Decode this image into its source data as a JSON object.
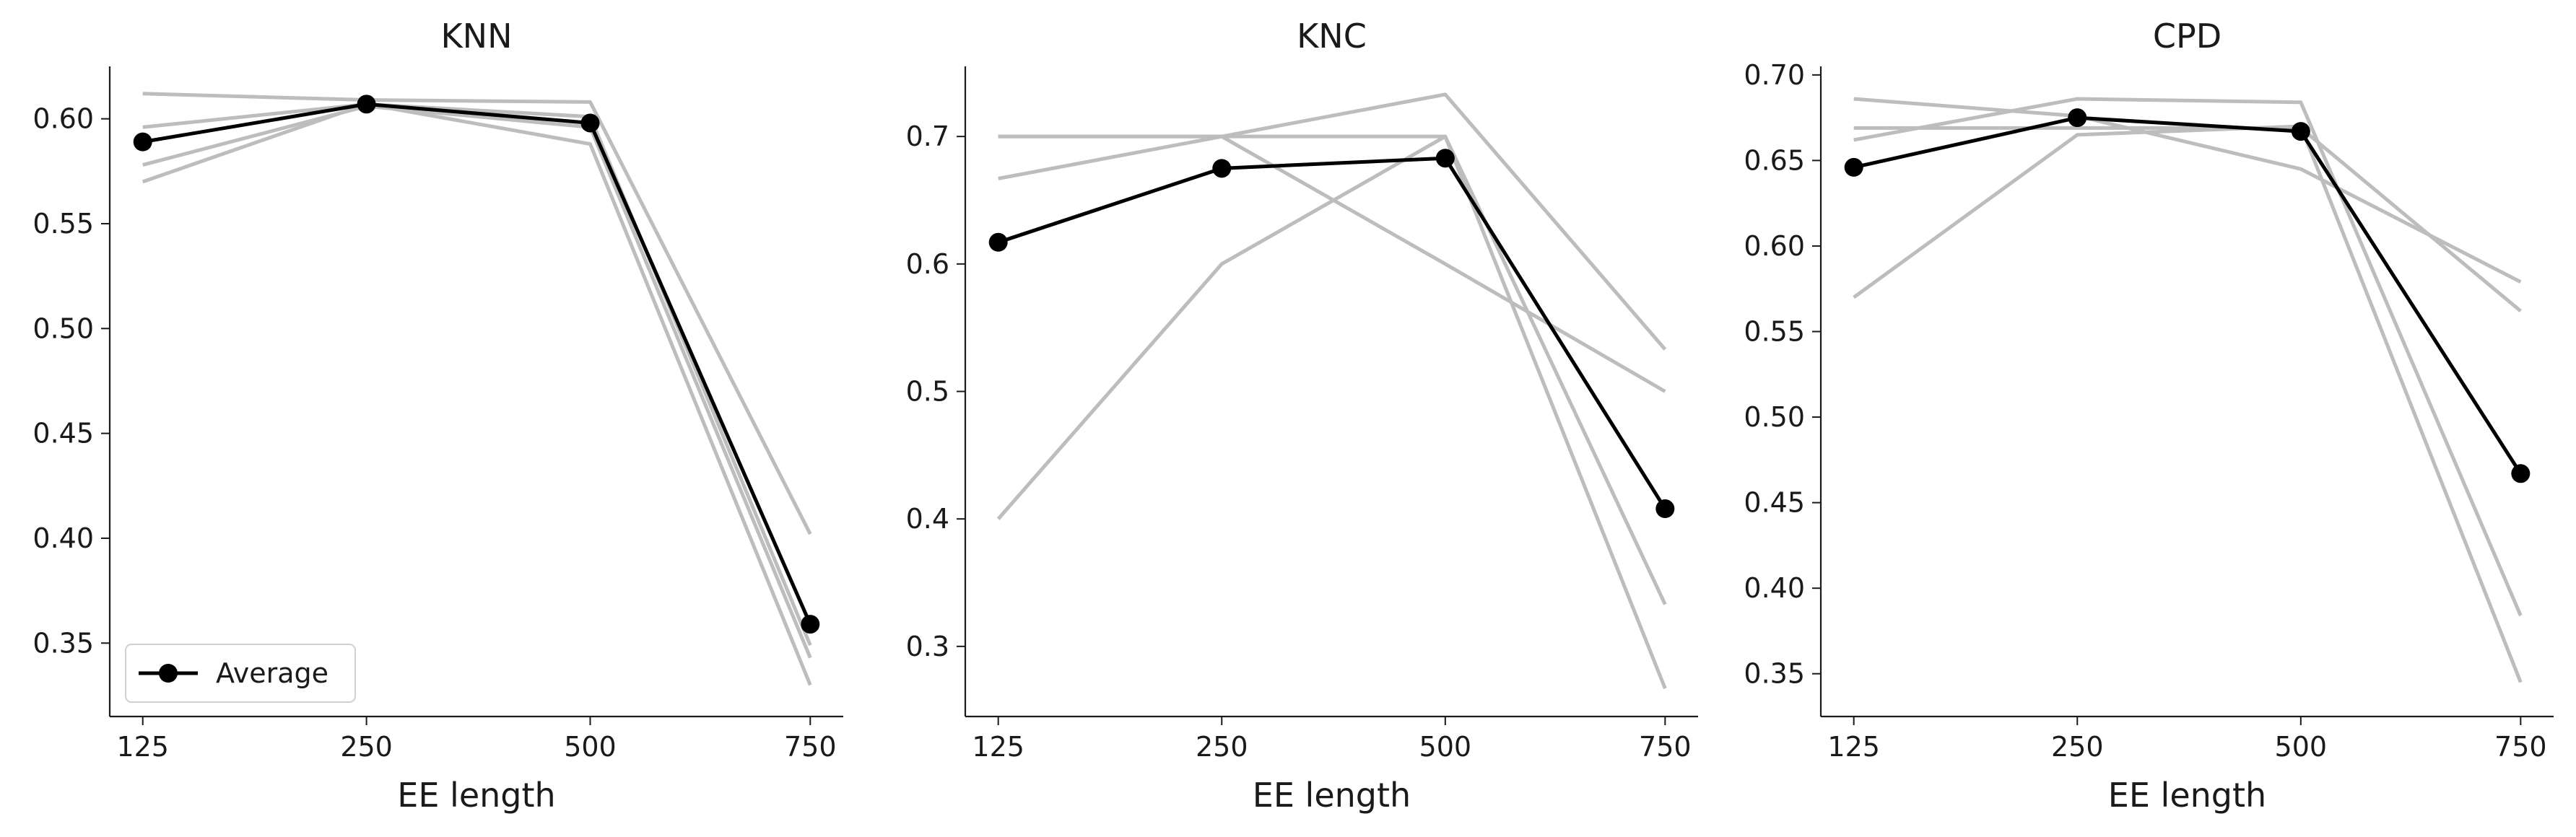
{
  "chart_data": [
    {
      "type": "line",
      "title": "KNN",
      "xlabel": "EE length",
      "ylabel": "",
      "categories": [
        "125",
        "250",
        "500",
        "750"
      ],
      "ylim": [
        0.315,
        0.625
      ],
      "yticks": [
        "0.35",
        "0.40",
        "0.45",
        "0.50",
        "0.55",
        "0.60"
      ],
      "background_series": [
        {
          "values": [
            0.612,
            0.609,
            0.608,
            0.402
          ]
        },
        {
          "values": [
            0.596,
            0.607,
            0.601,
            0.349
          ]
        },
        {
          "values": [
            0.578,
            0.606,
            0.596,
            0.343
          ]
        },
        {
          "values": [
            0.57,
            0.607,
            0.588,
            0.33
          ]
        }
      ],
      "average": {
        "name": "Average",
        "values": [
          0.589,
          0.607,
          0.598,
          0.359
        ]
      },
      "legend": {
        "show": true,
        "position": "lower-left"
      },
      "grid": false
    },
    {
      "type": "line",
      "title": "KNC",
      "xlabel": "EE length",
      "ylabel": "",
      "categories": [
        "125",
        "250",
        "500",
        "750"
      ],
      "ylim": [
        0.245,
        0.755
      ],
      "yticks": [
        "0.3",
        "0.4",
        "0.5",
        "0.6",
        "0.7"
      ],
      "background_series": [
        {
          "values": [
            0.7,
            0.7,
            0.7,
            0.267
          ]
        },
        {
          "values": [
            0.7,
            0.7,
            0.6,
            0.5
          ]
        },
        {
          "values": [
            0.667,
            0.7,
            0.733,
            0.533
          ]
        },
        {
          "values": [
            0.4,
            0.6,
            0.7,
            0.333
          ]
        }
      ],
      "average": {
        "name": "Average",
        "values": [
          0.617,
          0.675,
          0.683,
          0.408
        ]
      },
      "legend": {
        "show": false
      },
      "grid": false
    },
    {
      "type": "line",
      "title": "CPD",
      "xlabel": "EE length",
      "ylabel": "",
      "categories": [
        "125",
        "250",
        "500",
        "750"
      ],
      "ylim": [
        0.325,
        0.705
      ],
      "yticks": [
        "0.35",
        "0.40",
        "0.45",
        "0.50",
        "0.55",
        "0.60",
        "0.65",
        "0.70"
      ],
      "background_series": [
        {
          "values": [
            0.686,
            0.676,
            0.645,
            0.579
          ]
        },
        {
          "values": [
            0.669,
            0.669,
            0.669,
            0.562
          ]
        },
        {
          "values": [
            0.662,
            0.686,
            0.684,
            0.384
          ]
        },
        {
          "values": [
            0.57,
            0.665,
            0.67,
            0.345
          ]
        }
      ],
      "average": {
        "name": "Average",
        "values": [
          0.646,
          0.675,
          0.667,
          0.467
        ]
      },
      "legend": {
        "show": false
      },
      "grid": false
    }
  ],
  "colors": {
    "background_line": "#bdbdbd",
    "average_line": "#000000",
    "axis": "#1a1a1a"
  }
}
